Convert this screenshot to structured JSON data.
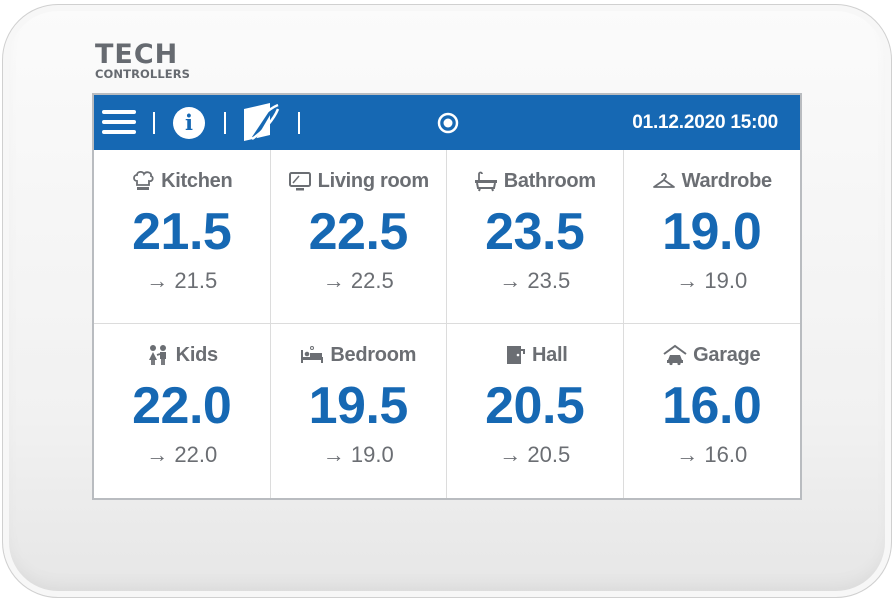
{
  "brand": {
    "name": "TECH",
    "sub": "CONTROLLERS"
  },
  "topbar": {
    "datetime": "01.12.2020 15:00",
    "info_label": "i"
  },
  "rooms": [
    {
      "name": "Kitchen",
      "icon": "chef-hat-icon",
      "temp": "21.5",
      "setpoint": "→ 21.5"
    },
    {
      "name": "Living room",
      "icon": "tv-icon",
      "temp": "22.5",
      "setpoint": "→ 22.5"
    },
    {
      "name": "Bathroom",
      "icon": "bathtub-icon",
      "temp": "23.5",
      "setpoint": "→ 23.5"
    },
    {
      "name": "Wardrobe",
      "icon": "hanger-icon",
      "temp": "19.0",
      "setpoint": "→ 19.0"
    },
    {
      "name": "Kids",
      "icon": "kids-icon",
      "temp": "22.0",
      "setpoint": "→ 22.0"
    },
    {
      "name": "Bedroom",
      "icon": "bed-icon",
      "temp": "19.5",
      "setpoint": "→ 19.0"
    },
    {
      "name": "Hall",
      "icon": "door-icon",
      "temp": "20.5",
      "setpoint": "→ 20.5"
    },
    {
      "name": "Garage",
      "icon": "garage-icon",
      "temp": "16.0",
      "setpoint": "→ 16.0"
    }
  ],
  "colors": {
    "accent": "#1668b3",
    "text_gray": "#6b6e73"
  }
}
